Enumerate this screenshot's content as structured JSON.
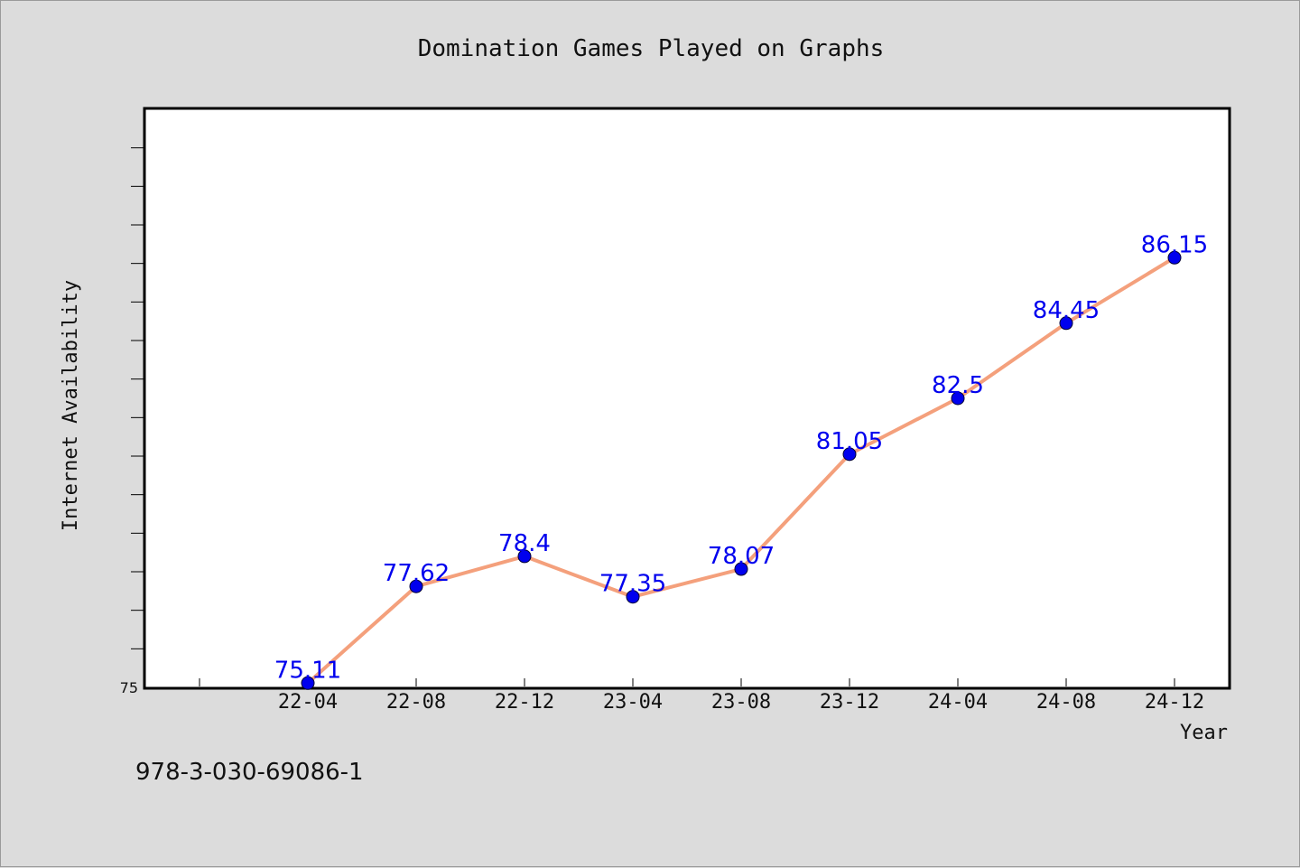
{
  "chart_data": {
    "type": "line",
    "title": "Domination Games Played on Graphs",
    "xlabel": "Year",
    "ylabel": "Internet Availability",
    "categories": [
      "22-04",
      "22-08",
      "22-12",
      "23-04",
      "23-08",
      "23-12",
      "24-04",
      "24-08",
      "24-12"
    ],
    "series": [
      {
        "values": [
          75.11,
          77.62,
          78.4,
          77.35,
          78.07,
          81.05,
          82.5,
          84.45,
          86.15
        ],
        "labels": [
          "75.11",
          "77.62",
          "78.4",
          "77.35",
          "78.07",
          "81.05",
          "82.5",
          "84.45",
          "86.15"
        ]
      }
    ],
    "ylim": [
      75,
      90
    ],
    "y_tick_labels": [
      "75"
    ],
    "grid": false,
    "colors": {
      "line": "#f4a07c",
      "marker": "#0000ee",
      "data_label": "#0000ee",
      "plot_background": "#ffffff",
      "page_background": "#dcdcdc"
    }
  },
  "footer": {
    "isbn": "978-3-030-69086-1"
  }
}
